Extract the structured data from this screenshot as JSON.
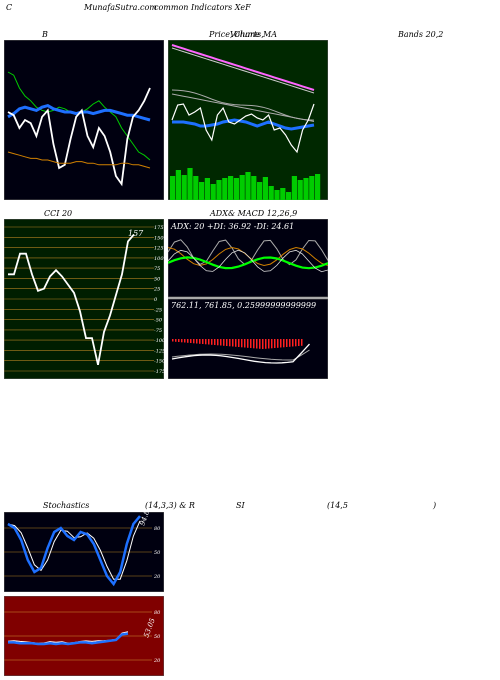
{
  "header": {
    "left": "C",
    "title": "MunafaSutra.com",
    "subtitle": "common Indicators XeF"
  },
  "panels": {
    "bollinger": {
      "label": "B",
      "title_right": "Bands 20,2"
    },
    "price": {
      "label": "Price,",
      "volume": "Volume",
      "overlap": "Charts,",
      "ma": "MA"
    },
    "cci": {
      "label": "CCI 20",
      "value": "157",
      "ticks": [
        "175",
        "150",
        "125",
        "100",
        "75",
        "50",
        "25",
        "0",
        "-25",
        "-50",
        "-75",
        "-100",
        "-125",
        "-150",
        "-175"
      ]
    },
    "adx": {
      "label": "ADX",
      "macd": "& MACD 12,26,9",
      "adx_readout": "ADX: 20  +DI: 36.92  -DI: 24.61",
      "macd_readout": "762.11,  761.85,  0.25999999999999"
    },
    "stoch": {
      "label": "Stochastics",
      "params": "(14,3,3) & R",
      "rsi_label": "SI",
      "rsi_params": "(14,5",
      "rsi_close": ")",
      "value": "94.83",
      "ticks": [
        "80",
        "50",
        "20"
      ]
    },
    "rsi": {
      "value": "53.05",
      "ticks": [
        "80",
        "50",
        "20"
      ]
    }
  },
  "watermark": "MunafaSutra.com",
  "colors": {
    "panel_bg": "#000010",
    "price_bg": "#002800",
    "cci_bg": "#001e00",
    "rsi_bg": "#800000",
    "blue": "#1e70ff",
    "green": "#00cc00",
    "orange": "#d08000",
    "white": "#ffffff"
  },
  "chart_data": [
    {
      "type": "line",
      "name": "bollinger-bands",
      "series": [
        {
          "values": [
            80,
            78,
            70,
            65,
            62,
            58,
            56,
            55,
            56,
            58,
            57,
            55,
            54,
            55,
            57,
            60,
            62,
            58,
            55,
            52,
            45,
            40,
            35,
            30,
            28,
            25
          ]
        },
        {
          "values": [
            52,
            54,
            57,
            58,
            57,
            56,
            58,
            59,
            57,
            56,
            55,
            55,
            54,
            55,
            55,
            54,
            55,
            56,
            56,
            55,
            54,
            53,
            53,
            52,
            51,
            50
          ]
        },
        {
          "values": [
            55,
            53,
            45,
            50,
            48,
            40,
            52,
            56,
            35,
            20,
            22,
            38,
            52,
            56,
            40,
            33,
            45,
            40,
            30,
            15,
            10,
            38,
            52,
            56,
            62,
            70
          ]
        },
        {
          "values": [
            30,
            29,
            28,
            27,
            26,
            26,
            25,
            25,
            24,
            23,
            23,
            23,
            24,
            24,
            23,
            23,
            22,
            22,
            22,
            22,
            23,
            23,
            22,
            22,
            21,
            20
          ]
        }
      ]
    },
    {
      "type": "line",
      "name": "cci-20",
      "values": [
        60,
        60,
        110,
        110,
        60,
        20,
        25,
        55,
        70,
        55,
        35,
        15,
        -30,
        -95,
        -95,
        -160,
        -80,
        -40,
        10,
        60,
        140,
        157
      ],
      "ylim": [
        -175,
        175
      ]
    },
    {
      "type": "line",
      "name": "stochastics",
      "values": [
        85,
        80,
        65,
        40,
        25,
        30,
        55,
        75,
        80,
        70,
        65,
        75,
        72,
        60,
        40,
        20,
        10,
        25,
        60,
        85,
        94.83
      ],
      "ylim": [
        0,
        100
      ]
    },
    {
      "type": "line",
      "name": "rsi",
      "values": [
        42,
        42,
        41,
        41,
        41,
        40,
        40,
        41,
        40,
        41,
        40,
        41,
        42,
        42,
        41,
        42,
        43,
        44,
        45,
        52,
        53.05
      ],
      "ylim": [
        0,
        100
      ]
    }
  ]
}
